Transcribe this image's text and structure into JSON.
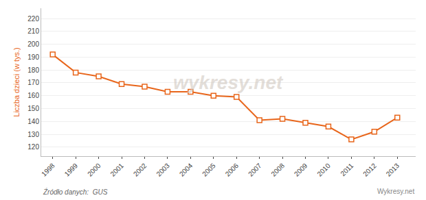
{
  "chart_data": {
    "type": "line",
    "x": [
      1998,
      1999,
      2000,
      2001,
      2002,
      2003,
      2004,
      2005,
      2006,
      2007,
      2008,
      2009,
      2010,
      2011,
      2012,
      2013
    ],
    "values": [
      192,
      178,
      175,
      169,
      167,
      163,
      163,
      160,
      159,
      141,
      142,
      139,
      136,
      126,
      132,
      143
    ],
    "color": "#E8651A",
    "marker": "square",
    "ylabel": "Liczba dzieci (w tys.)",
    "annotations": [
      "Źródło danych:  GUS",
      "Wykresy.net",
      "wykresy.net"
    ],
    "xlim": [
      1997.5,
      2013.8
    ],
    "xticks": [
      1998,
      1999,
      2000,
      2001,
      2002,
      2003,
      2004,
      2005,
      2006,
      2007,
      2008,
      2009,
      2010,
      2011,
      2012,
      2013
    ],
    "ylim": [
      113,
      228
    ],
    "yticks": [
      120,
      130,
      140,
      150,
      160,
      170,
      180,
      190,
      200,
      210,
      220
    ],
    "grid": true
  }
}
